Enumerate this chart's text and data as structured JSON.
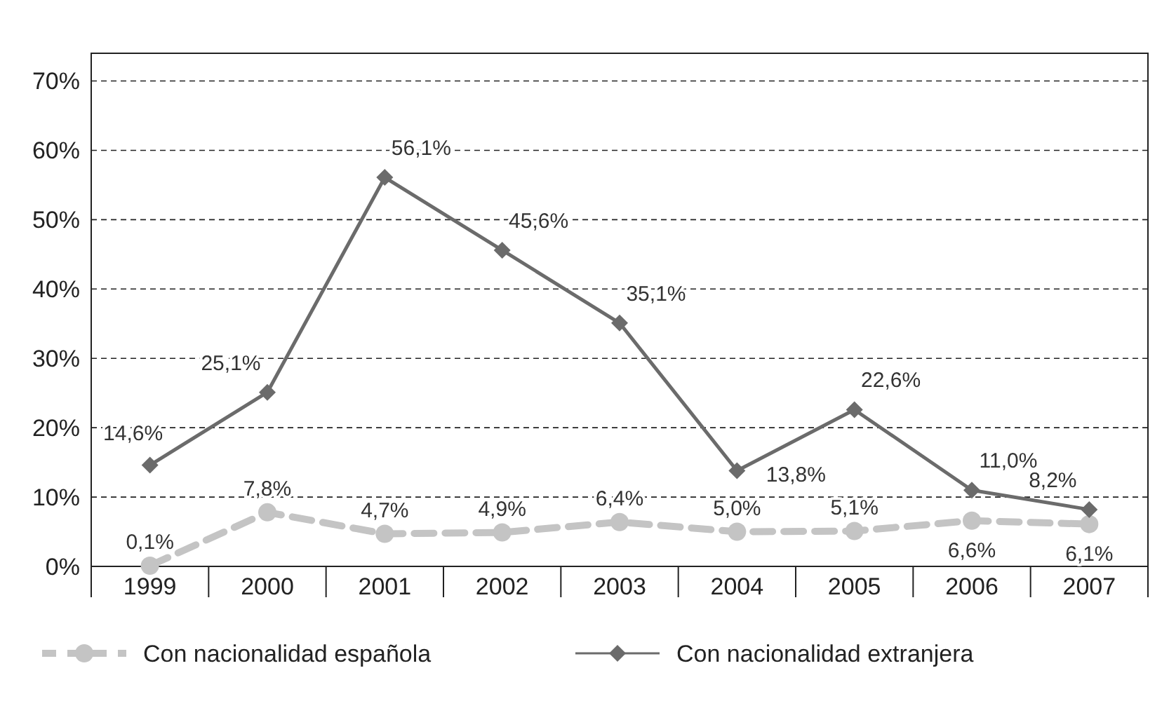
{
  "chart_data": {
    "type": "line",
    "categories": [
      "1999",
      "2000",
      "2001",
      "2002",
      "2003",
      "2004",
      "2005",
      "2006",
      "2007"
    ],
    "series": [
      {
        "name": "Con nacionalidad española",
        "color": "#c4c4c4",
        "marker": "circle",
        "line_style": "dashed",
        "values": [
          0.1,
          7.8,
          4.7,
          4.9,
          6.4,
          5.0,
          5.1,
          6.6,
          6.1
        ],
        "value_labels": [
          "0,1%",
          "7,8%",
          "4,7%",
          "4,9%",
          "6,4%",
          "5,0%",
          "5,1%",
          "6,6%",
          "6,1%"
        ]
      },
      {
        "name": "Con nacionalidad extranjera",
        "color": "#6b6b6b",
        "marker": "diamond",
        "line_style": "solid",
        "values": [
          14.6,
          25.1,
          56.1,
          45.6,
          35.1,
          13.8,
          22.6,
          11.0,
          8.2
        ],
        "value_labels": [
          "14,6%",
          "25,1%",
          "56,1%",
          "45,6%",
          "35,1%",
          "13,8%",
          "22,6%",
          "11,0%",
          "8,2%"
        ]
      }
    ],
    "ylim": [
      0,
      74
    ],
    "yticks": [
      {
        "value": 0,
        "label": "0%"
      },
      {
        "value": 10,
        "label": "10%"
      },
      {
        "value": 20,
        "label": "20%"
      },
      {
        "value": 30,
        "label": "30%"
      },
      {
        "value": 40,
        "label": "40%"
      },
      {
        "value": 50,
        "label": "50%"
      },
      {
        "value": 60,
        "label": "60%"
      },
      {
        "value": 70,
        "label": "70%"
      }
    ],
    "grid": "y",
    "legend": "bottom"
  }
}
